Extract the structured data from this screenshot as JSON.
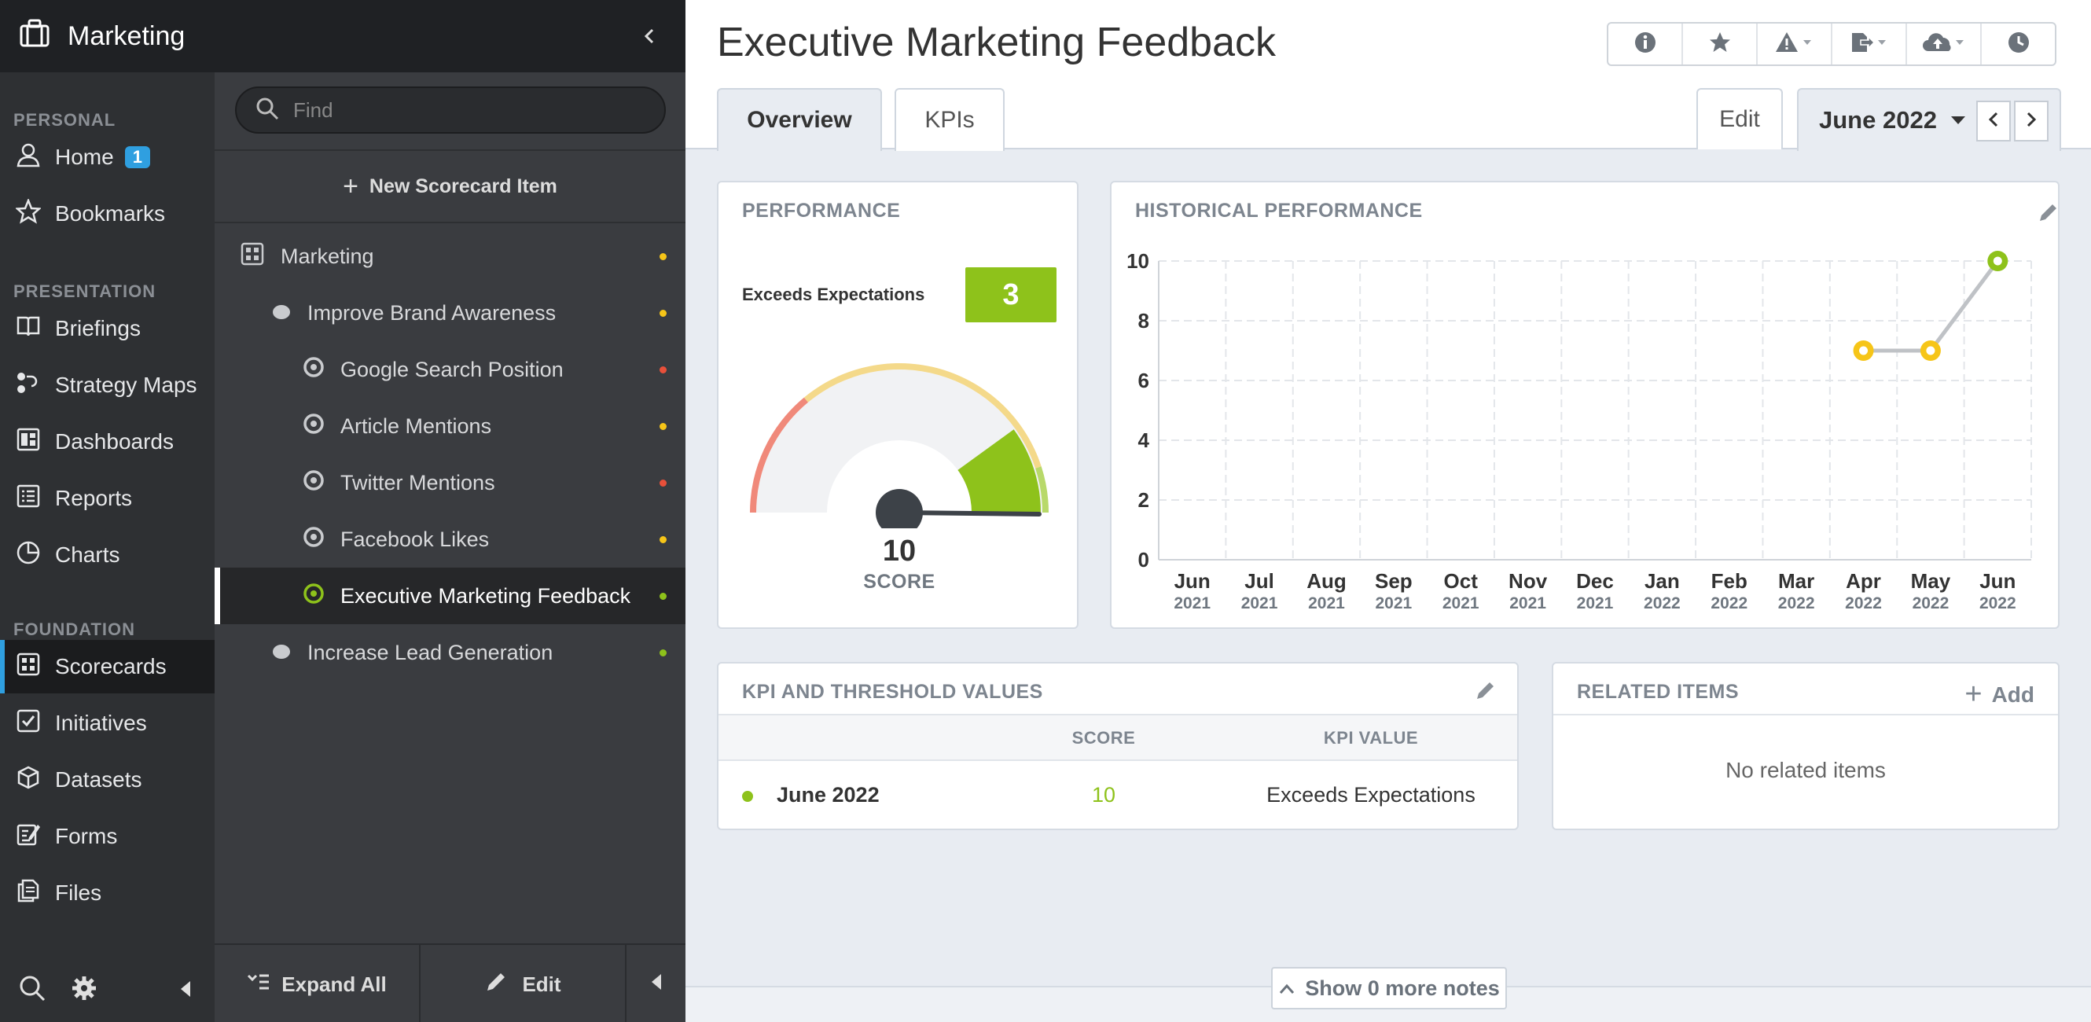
{
  "app": {
    "title": "Marketing"
  },
  "nav": {
    "sections": [
      {
        "title": "PERSONAL",
        "items": [
          {
            "label": "Home",
            "icon": "user-icon",
            "badge": "1"
          },
          {
            "label": "Bookmarks",
            "icon": "star-icon"
          }
        ]
      },
      {
        "title": "PRESENTATION",
        "items": [
          {
            "label": "Briefings",
            "icon": "book-icon"
          },
          {
            "label": "Strategy Maps",
            "icon": "strategy-map-icon"
          },
          {
            "label": "Dashboards",
            "icon": "dashboard-icon"
          },
          {
            "label": "Reports",
            "icon": "report-icon"
          },
          {
            "label": "Charts",
            "icon": "pie-chart-icon"
          }
        ]
      },
      {
        "title": "FOUNDATION",
        "items": [
          {
            "label": "Scorecards",
            "icon": "scorecard-icon",
            "active": true
          },
          {
            "label": "Initiatives",
            "icon": "checkbox-icon"
          },
          {
            "label": "Datasets",
            "icon": "cube-icon"
          },
          {
            "label": "Forms",
            "icon": "form-icon"
          },
          {
            "label": "Files",
            "icon": "files-icon"
          }
        ]
      }
    ]
  },
  "tree": {
    "search_placeholder": "Find",
    "new_item_label": "New Scorecard Item",
    "items": [
      {
        "label": "Marketing",
        "level": 0,
        "icon": "scorecard-icon",
        "status": "#f6c518"
      },
      {
        "label": "Improve Brand Awareness",
        "level": 1,
        "icon": "objective-icon",
        "status": "#f6c518"
      },
      {
        "label": "Google Search Position",
        "level": 2,
        "icon": "kpi-icon",
        "status": "#e8503a"
      },
      {
        "label": "Article Mentions",
        "level": 2,
        "icon": "kpi-icon",
        "status": "#f6c518"
      },
      {
        "label": "Twitter Mentions",
        "level": 2,
        "icon": "kpi-icon",
        "status": "#e8503a"
      },
      {
        "label": "Facebook Likes",
        "level": 2,
        "icon": "kpi-icon",
        "status": "#f6c518"
      },
      {
        "label": "Executive Marketing Feedback",
        "level": 2,
        "icon": "kpi-icon",
        "status": "#8ec21b",
        "active": true
      },
      {
        "label": "Increase Lead Generation",
        "level": 1,
        "icon": "objective-icon",
        "status": "#8ec21b"
      }
    ],
    "expand_all_label": "Expand All",
    "edit_label": "Edit"
  },
  "header": {
    "title": "Executive Marketing Feedback",
    "tabs": [
      {
        "label": "Overview",
        "active": true
      },
      {
        "label": "KPIs"
      }
    ],
    "edit_label": "Edit",
    "period": "June 2022",
    "toolbar_icons": [
      "info-icon",
      "star-icon",
      "alert-icon",
      "export-icon",
      "cloud-upload-icon",
      "history-icon"
    ]
  },
  "performance": {
    "title": "PERFORMANCE",
    "label": "Exceeds Expectations",
    "score_box": "3",
    "gauge_value": "10",
    "gauge_caption": "SCORE",
    "gauge_fraction": 1.0,
    "colors": {
      "low": "#f0897a",
      "mid": "#f4d98a",
      "high": "#8ec21b"
    }
  },
  "historical": {
    "title": "HISTORICAL PERFORMANCE"
  },
  "chart_data": {
    "type": "line",
    "title": "HISTORICAL PERFORMANCE",
    "categories": [
      "Jun 2021",
      "Jul 2021",
      "Aug 2021",
      "Sep 2021",
      "Oct 2021",
      "Nov 2021",
      "Dec 2021",
      "Jan 2022",
      "Feb 2022",
      "Mar 2022",
      "Apr 2022",
      "May 2022",
      "Jun 2022"
    ],
    "x_month": [
      "Jun",
      "Jul",
      "Aug",
      "Sep",
      "Oct",
      "Nov",
      "Dec",
      "Jan",
      "Feb",
      "Mar",
      "Apr",
      "May",
      "Jun"
    ],
    "x_year": [
      "2021",
      "2021",
      "2021",
      "2021",
      "2021",
      "2021",
      "2021",
      "2022",
      "2022",
      "2022",
      "2022",
      "2022",
      "2022"
    ],
    "series": [
      {
        "values": [
          null,
          null,
          null,
          null,
          null,
          null,
          null,
          null,
          null,
          null,
          7,
          7,
          10
        ],
        "point_colors": [
          null,
          null,
          null,
          null,
          null,
          null,
          null,
          null,
          null,
          null,
          "#f6c518",
          "#f6c518",
          "#8ec21b"
        ]
      }
    ],
    "yticks": [
      0,
      2,
      4,
      6,
      8,
      10
    ],
    "ylim": [
      0,
      10
    ],
    "grid": true
  },
  "kpi_table": {
    "title": "KPI AND THRESHOLD VALUES",
    "columns": [
      "SCORE",
      "KPI VALUE"
    ],
    "rows": [
      {
        "period": "June 2022",
        "score": "10",
        "value": "Exceeds Expectations",
        "status": "#8ec21b"
      }
    ]
  },
  "related": {
    "title": "RELATED ITEMS",
    "add_label": "Add",
    "empty_text": "No related items"
  },
  "notes": {
    "label": "Show 0 more notes"
  }
}
